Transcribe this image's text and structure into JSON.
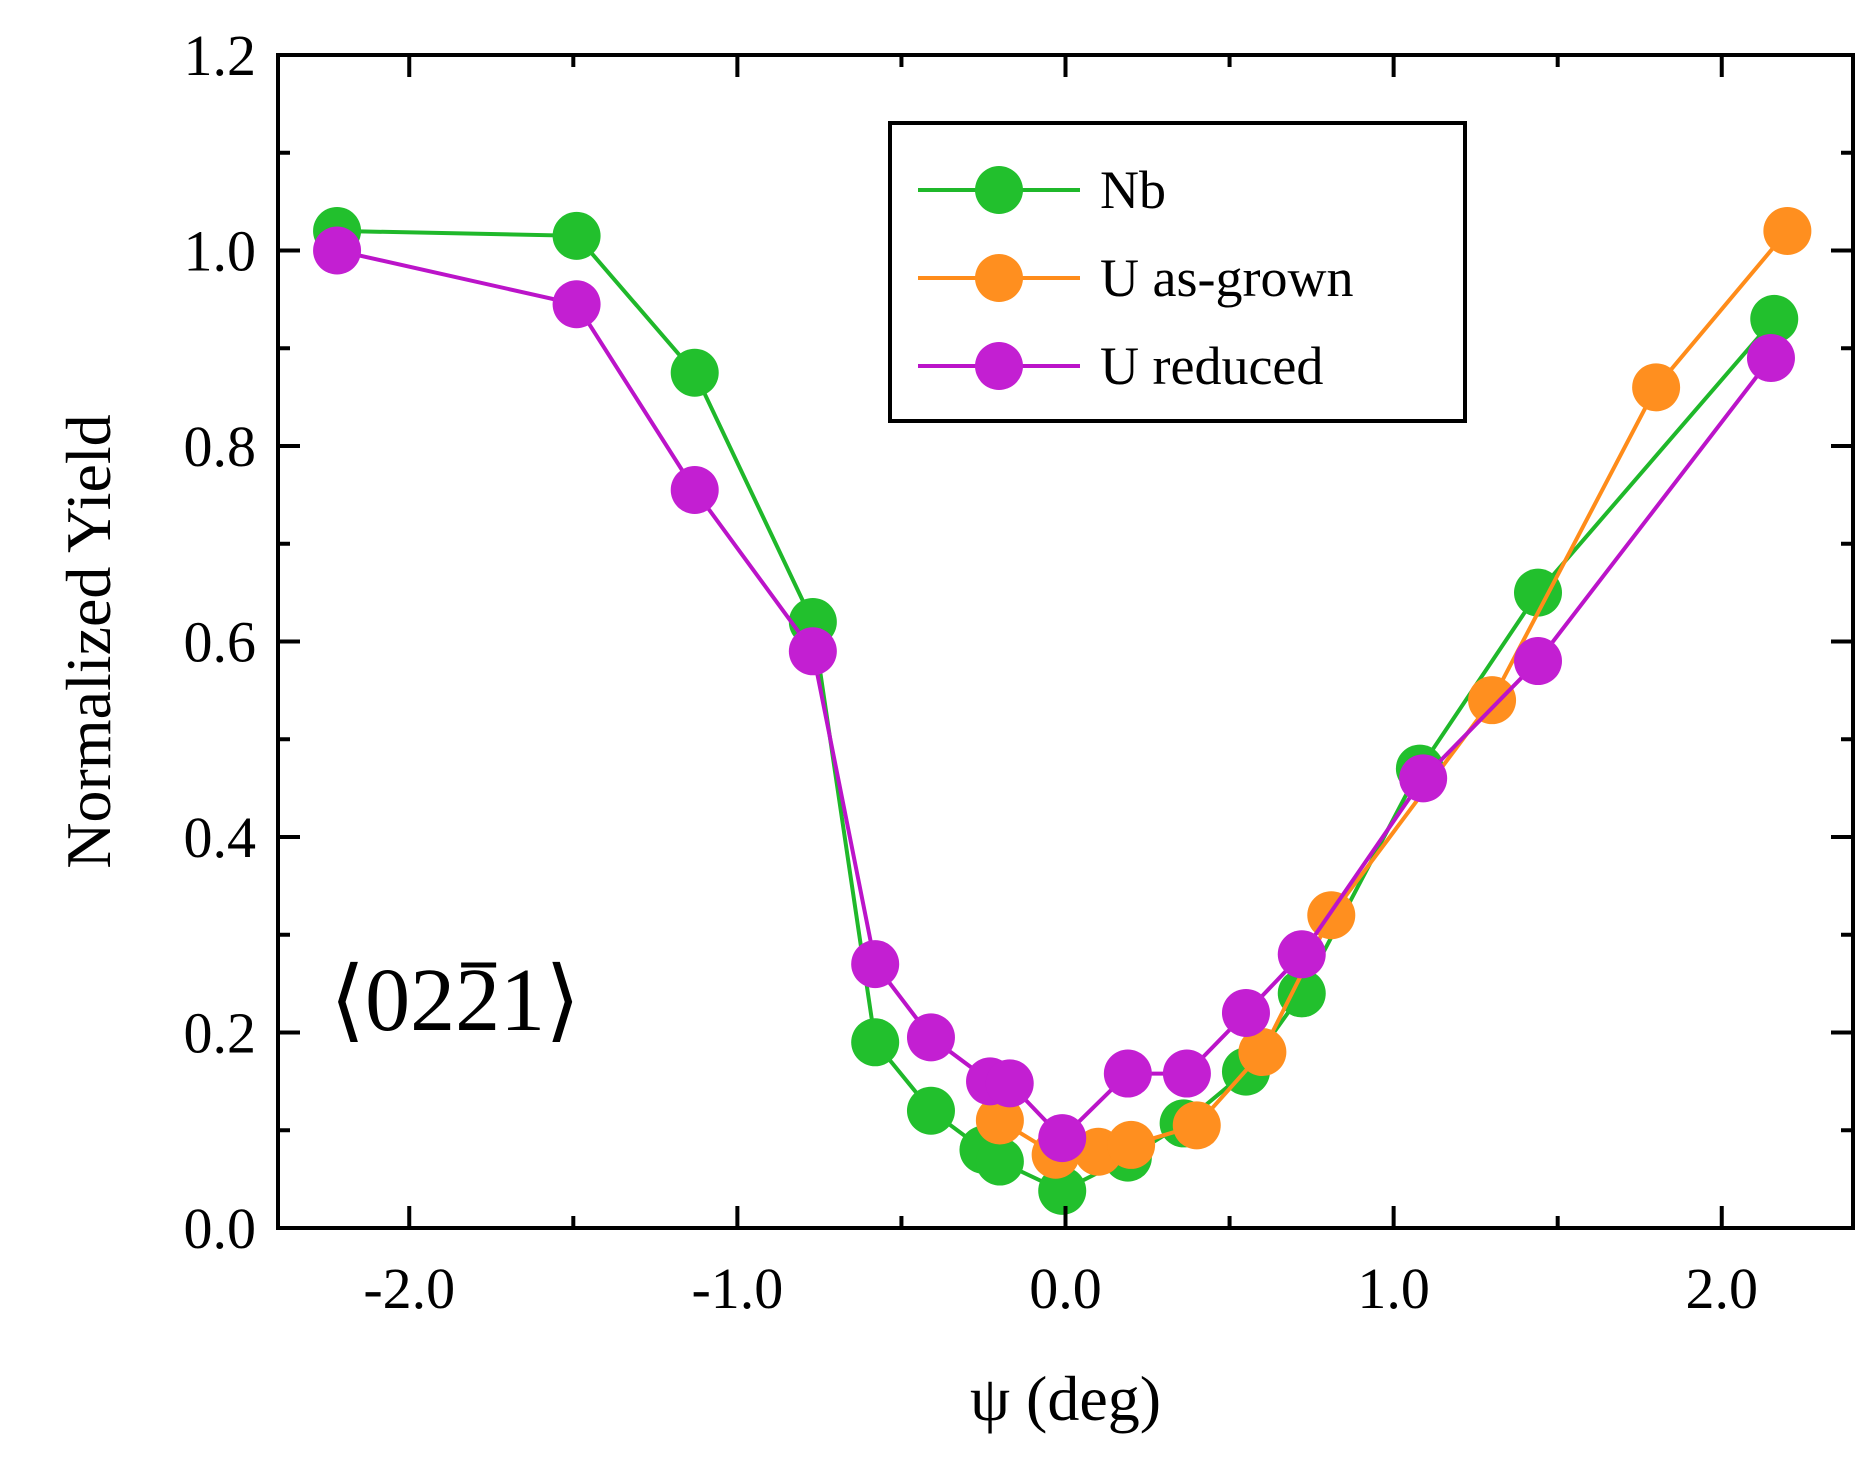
{
  "chart_data": {
    "type": "line",
    "title": "",
    "xlabel": "ψ (deg)",
    "ylabel": "Normalized Yield",
    "xlim": [
      -2.4,
      2.4
    ],
    "ylim": [
      0.0,
      1.2
    ],
    "xticks": [
      -2.0,
      -1.0,
      0.0,
      1.0,
      2.0
    ],
    "xtick_labels": [
      "-2.0",
      "-1.0",
      "0.0",
      "1.0",
      "2.0"
    ],
    "yticks": [
      0.0,
      0.2,
      0.4,
      0.6,
      0.8,
      1.0,
      1.2
    ],
    "ytick_labels": [
      "0.0",
      "0.2",
      "0.4",
      "0.6",
      "0.8",
      "1.0",
      "1.2"
    ],
    "grid": false,
    "legend_position": "top-center",
    "annotation": {
      "prefix": "⟨02",
      "overbar_digit": "2",
      "suffix": "1⟩"
    },
    "series": [
      {
        "name": "Nb",
        "color": "#1fb82a",
        "marker_color": "#22c02d",
        "x": [
          -2.22,
          -1.49,
          -1.13,
          -0.77,
          -0.58,
          -0.41,
          -0.25,
          -0.2,
          -0.01,
          0.19,
          0.36,
          0.55,
          0.72,
          1.08,
          1.44,
          2.16
        ],
        "y": [
          1.02,
          1.015,
          0.875,
          0.62,
          0.19,
          0.12,
          0.08,
          0.068,
          0.038,
          0.072,
          0.107,
          0.16,
          0.24,
          0.47,
          0.65,
          0.93
        ]
      },
      {
        "name": "U as-grown",
        "color": "#ff8c1a",
        "marker_color": "#ff8f1f",
        "x": [
          -0.2,
          -0.03,
          0.1,
          0.2,
          0.4,
          0.6,
          0.81,
          1.3,
          1.8,
          2.2
        ],
        "y": [
          0.11,
          0.075,
          0.078,
          0.085,
          0.105,
          0.18,
          0.32,
          0.54,
          0.86,
          1.02
        ]
      },
      {
        "name": "U reduced",
        "color": "#bb14c9",
        "marker_color": "#c31fd2",
        "x": [
          -2.22,
          -1.49,
          -1.13,
          -0.77,
          -0.58,
          -0.41,
          -0.23,
          -0.17,
          -0.01,
          0.19,
          0.37,
          0.55,
          0.72,
          1.09,
          1.44,
          2.15
        ],
        "y": [
          1.0,
          0.945,
          0.755,
          0.59,
          0.27,
          0.195,
          0.15,
          0.148,
          0.092,
          0.158,
          0.158,
          0.22,
          0.28,
          0.46,
          0.58,
          0.89
        ]
      }
    ]
  }
}
